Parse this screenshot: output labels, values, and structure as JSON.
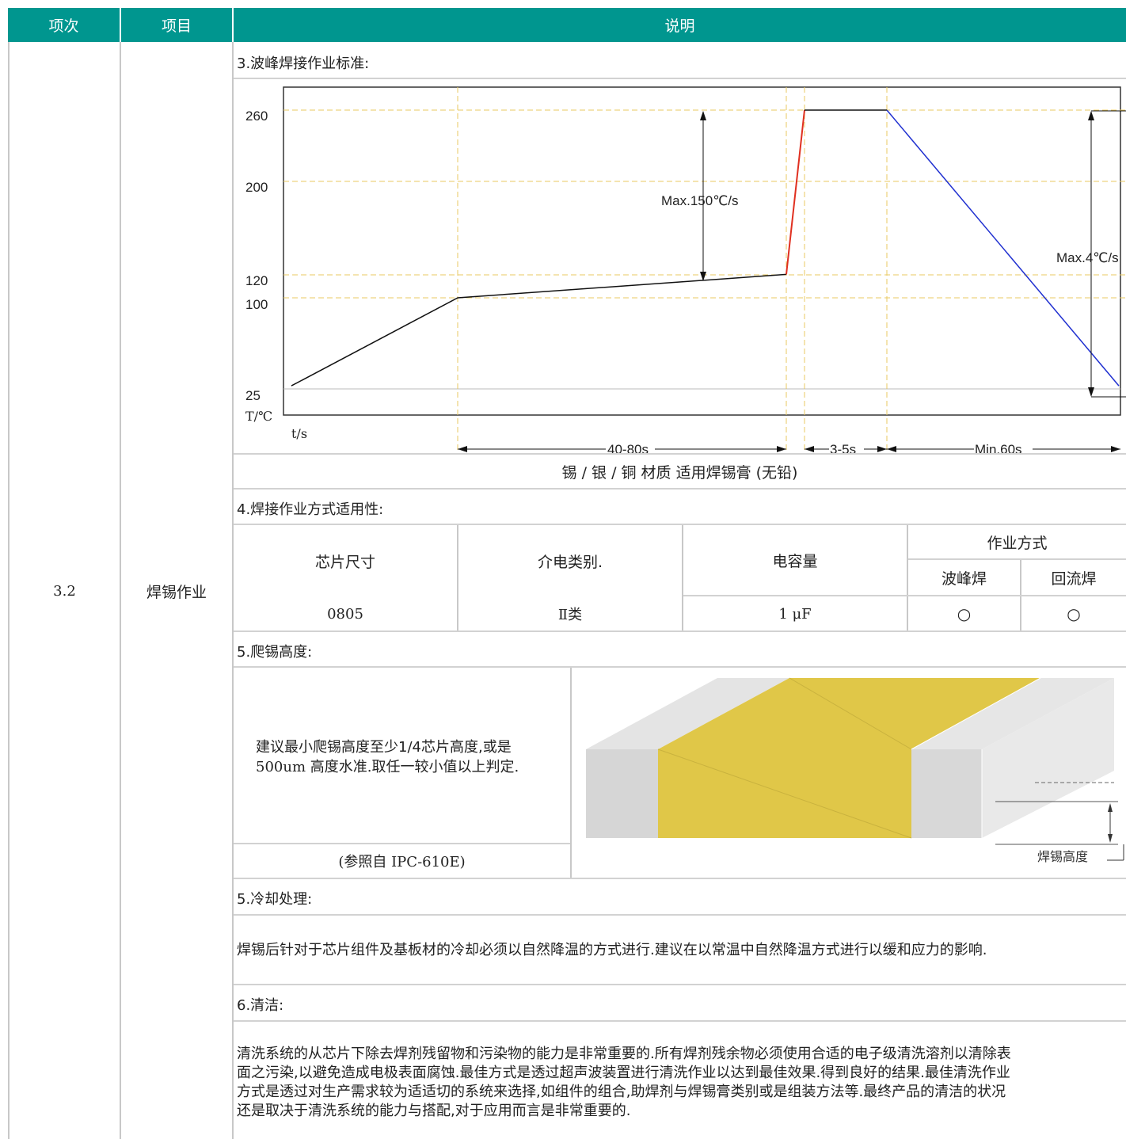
{
  "header": {
    "col1": "项次",
    "col2": "项目",
    "col3": "说明"
  },
  "row": {
    "index": "3.2",
    "item": "焊锡作业"
  },
  "section3": {
    "title": "3.波峰焊接作业标准:",
    "chart_data": {
      "type": "line",
      "title": "",
      "xlabel": "t/s",
      "ylabel": "T/℃",
      "yticks": [
        "260",
        "200",
        "120",
        "100",
        "25"
      ],
      "series": [
        {
          "color": "#000000",
          "x": [
            "start",
            "end of ramp",
            "end of preheat"
          ],
          "y": [
            25,
            100,
            120
          ]
        },
        {
          "color": "#e03020",
          "x": [
            "end of preheat",
            "peak start"
          ],
          "y": [
            120,
            260
          ]
        },
        {
          "color": "#000000",
          "x": [
            "peak start",
            "peak end"
          ],
          "y": [
            260,
            260
          ]
        },
        {
          "color": "#2030d0",
          "x": [
            "peak end",
            "end"
          ],
          "y": [
            260,
            25
          ]
        }
      ],
      "annotations": [
        "Max.150℃/s",
        "Max.4℃/s"
      ],
      "intervals": [
        "40-80s",
        "3-5s",
        "Min.60s"
      ],
      "colors": {
        "guides": "#e8c860",
        "preheat_line": "#000000",
        "heating_line": "#e03020",
        "cooling_line": "#2030d0"
      }
    },
    "material_note": "锡 / 银 / 铜 材质 适用焊锡膏 (无铅)"
  },
  "section4": {
    "title": "4.焊接作业方式适用性:",
    "headers": {
      "size": "芯片尺寸",
      "dielectric": "介电类别.",
      "capacitance": "电容量",
      "method": "作业方式",
      "wave": "波峰焊",
      "reflow": "回流焊"
    },
    "row": {
      "size": "0805",
      "dielectric": "Ⅱ类",
      "capacitance": "1 μF",
      "wave": "○",
      "reflow": "○"
    }
  },
  "section5a": {
    "title": "5.爬锡高度:",
    "text_line1": "建议最小爬锡高度至少1/4芯片高度,或是",
    "text_line2": "500um 高度水准.取任一较小值以上判定.",
    "reference": "(参照自 IPC-610E)",
    "figure_label": "焊锡高度",
    "colors": {
      "solder": "#e0c748",
      "terminal": "#d8d8d8"
    }
  },
  "section5b": {
    "title": "5.冷却处理:",
    "text": "焊锡后针对于芯片组件及基板材的冷却必须以自然降温的方式进行.建议在以常温中自然降温方式进行以缓和应力的影响."
  },
  "section6": {
    "title": "6.清洁:",
    "lines": [
      "清洗系统的从芯片下除去焊剂残留物和污染物的能力是非常重要的.所有焊剂残余物必须使用合适的电子级清洗溶剂以清除表",
      "面之污染,以避免造成电极表面腐蚀.最佳方式是透过超声波装置进行清洗作业以达到最佳效果.得到良好的结果.最佳清洗作业",
      "方式是透过对生产需求较为适适切的系统来选择,如组件的组合,助焊剂与焊锡膏类别或是组装方法等.最终产品的清洁的状况",
      "还是取决于清洗系统的能力与搭配,对于应用而言是非常重要的."
    ]
  }
}
